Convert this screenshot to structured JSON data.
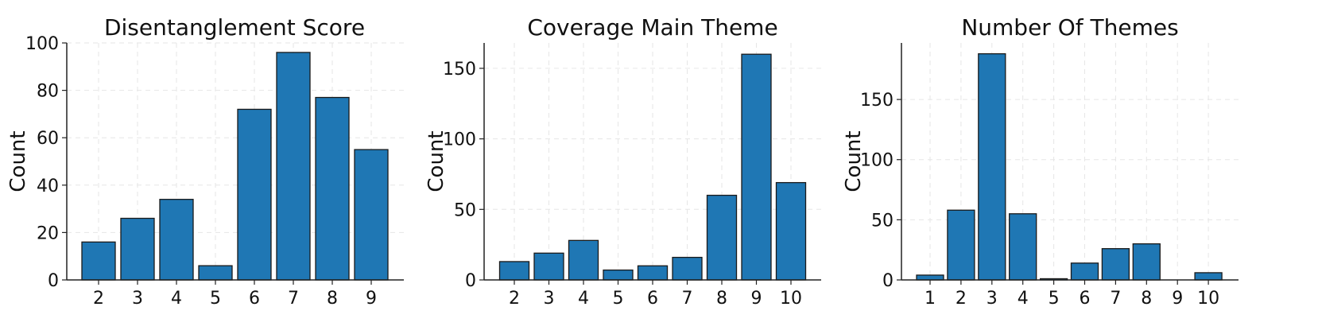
{
  "chart_data": [
    {
      "type": "bar",
      "title": "Disentanglement Score",
      "ylabel": "Count",
      "xlabel": "",
      "categories": [
        "2",
        "3",
        "4",
        "5",
        "6",
        "7",
        "8",
        "9"
      ],
      "values": [
        16,
        26,
        34,
        6,
        72,
        96,
        77,
        55
      ],
      "ylim": [
        0,
        100
      ],
      "yticks": [
        0,
        20,
        40,
        60,
        80,
        100
      ],
      "grid": true,
      "color": "#1f77b4"
    },
    {
      "type": "bar",
      "title": "Coverage Main Theme",
      "ylabel": "Count",
      "xlabel": "",
      "categories": [
        "2",
        "3",
        "4",
        "5",
        "6",
        "7",
        "8",
        "9",
        "10"
      ],
      "values": [
        13,
        19,
        28,
        7,
        10,
        16,
        60,
        160,
        69
      ],
      "ylim": [
        0,
        168
      ],
      "yticks": [
        0,
        50,
        100,
        150
      ],
      "grid": true,
      "color": "#1f77b4"
    },
    {
      "type": "bar",
      "title": "Number Of Themes",
      "ylabel": "Count",
      "xlabel": "",
      "categories": [
        "1",
        "2",
        "3",
        "4",
        "5",
        "6",
        "7",
        "8",
        "9",
        "10"
      ],
      "values": [
        4,
        58,
        188,
        55,
        1,
        14,
        26,
        30,
        0,
        6
      ],
      "ylim": [
        0,
        197
      ],
      "yticks": [
        0,
        50,
        100,
        150
      ],
      "grid": true,
      "color": "#1f77b4"
    }
  ]
}
